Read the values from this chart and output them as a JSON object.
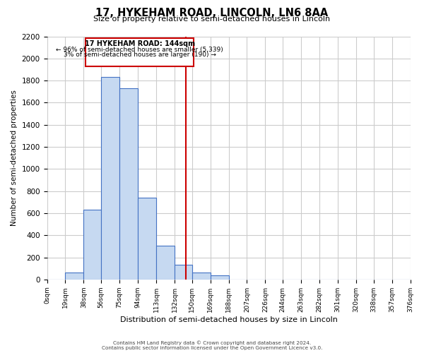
{
  "title": "17, HYKEHAM ROAD, LINCOLN, LN6 8AA",
  "subtitle": "Size of property relative to semi-detached houses in Lincoln",
  "xlabel": "Distribution of semi-detached houses by size in Lincoln",
  "ylabel": "Number of semi-detached properties",
  "bar_edges": [
    0,
    19,
    38,
    56,
    75,
    94,
    113,
    132,
    150,
    169,
    188,
    207,
    226,
    244,
    263,
    282,
    301,
    320,
    338,
    357,
    376
  ],
  "bar_heights": [
    0,
    60,
    630,
    1830,
    1730,
    740,
    305,
    130,
    65,
    40,
    0,
    0,
    0,
    0,
    0,
    0,
    0,
    0,
    0,
    0
  ],
  "tick_labels": [
    "0sqm",
    "19sqm",
    "38sqm",
    "56sqm",
    "75sqm",
    "94sqm",
    "113sqm",
    "132sqm",
    "150sqm",
    "169sqm",
    "188sqm",
    "207sqm",
    "226sqm",
    "244sqm",
    "263sqm",
    "282sqm",
    "301sqm",
    "320sqm",
    "338sqm",
    "357sqm",
    "376sqm"
  ],
  "bar_color": "#c6d9f1",
  "bar_edge_color": "#4472c4",
  "property_line_x": 144,
  "property_line_color": "#cc0000",
  "annotation_title": "17 HYKEHAM ROAD: 144sqm",
  "annotation_line1": "← 96% of semi-detached houses are smaller (5,339)",
  "annotation_line2": "3% of semi-detached houses are larger (190) →",
  "annotation_box_color": "#cc0000",
  "ylim": [
    0,
    2200
  ],
  "yticks": [
    0,
    200,
    400,
    600,
    800,
    1000,
    1200,
    1400,
    1600,
    1800,
    2000,
    2200
  ],
  "background_color": "#ffffff",
  "grid_color": "#cccccc",
  "footer_line1": "Contains HM Land Registry data © Crown copyright and database right 2024.",
  "footer_line2": "Contains public sector information licensed under the Open Government Licence v3.0."
}
